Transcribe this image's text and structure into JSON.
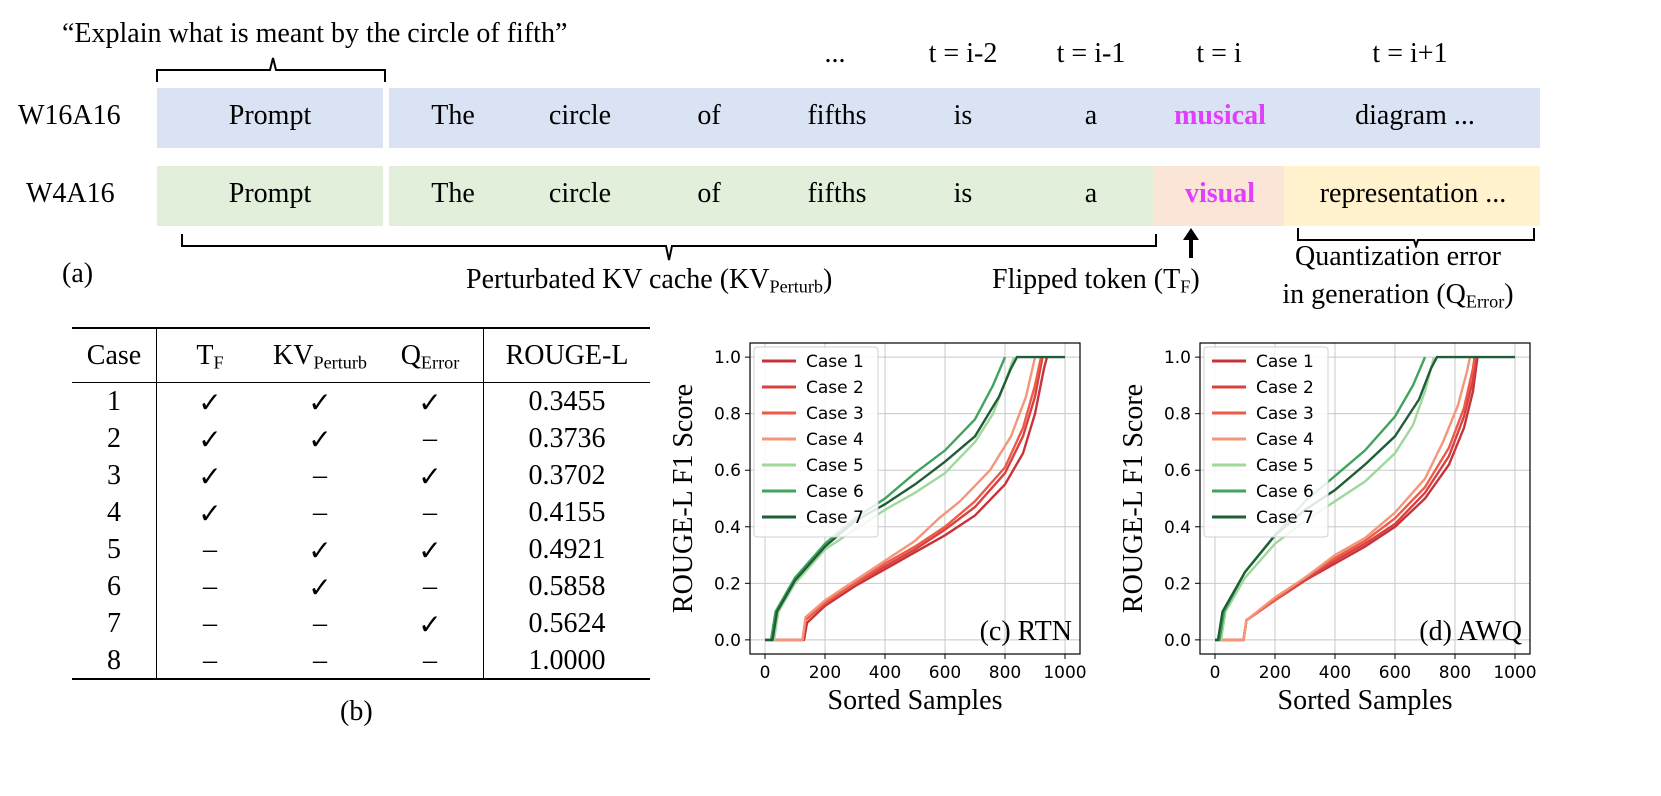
{
  "panel_a": {
    "quote": "“Explain what is meant by the circle of fifth”",
    "time_headers": [
      "...",
      "t = i-2",
      "t = i-1",
      "t = i",
      "t = i+1"
    ],
    "rows": [
      {
        "label": "W16A16",
        "prompt": "Prompt",
        "tokens": [
          "The",
          "circle",
          "of",
          "fifths",
          "is",
          "a",
          "musical",
          "diagram ..."
        ]
      },
      {
        "label": "W4A16",
        "prompt": "Prompt",
        "tokens": [
          "The",
          "circle",
          "of",
          "fifths",
          "is",
          "a",
          "visual",
          "representation ..."
        ]
      }
    ],
    "label": "(a)",
    "kv_label": "Perturbated KV cache (KV",
    "kv_sub": "Perturb",
    "kv_close": ")",
    "flip_label": "Flipped token (T",
    "flip_sub": "F",
    "flip_close": ")",
    "qerr_line1": "Quantization error",
    "qerr_line2": "in generation (Q",
    "qerr_sub": "Error",
    "qerr_close": ")",
    "colors": {
      "blue_band": "#dae3f3",
      "green_band": "#e2efda",
      "flip_band": "#fbe5d6",
      "qerr_band": "#fff2cc",
      "highlight": "#e040fb"
    }
  },
  "panel_b": {
    "label": "(b)",
    "headers": {
      "case": "Case",
      "tf": "T",
      "tf_sub": "F",
      "kv": "KV",
      "kv_sub": "Perturb",
      "q": "Q",
      "q_sub": "Error",
      "rouge": "ROUGE-L"
    },
    "rows": [
      {
        "case": "1",
        "tf": "✓",
        "kv": "✓",
        "q": "✓",
        "rouge": "0.3455"
      },
      {
        "case": "2",
        "tf": "✓",
        "kv": "✓",
        "q": "–",
        "rouge": "0.3736"
      },
      {
        "case": "3",
        "tf": "✓",
        "kv": "–",
        "q": "✓",
        "rouge": "0.3702"
      },
      {
        "case": "4",
        "tf": "✓",
        "kv": "–",
        "q": "–",
        "rouge": "0.4155"
      },
      {
        "case": "5",
        "tf": "–",
        "kv": "✓",
        "q": "✓",
        "rouge": "0.4921"
      },
      {
        "case": "6",
        "tf": "–",
        "kv": "✓",
        "q": "–",
        "rouge": "0.5858"
      },
      {
        "case": "7",
        "tf": "–",
        "kv": "–",
        "q": "✓",
        "rouge": "0.5624"
      },
      {
        "case": "8",
        "tf": "–",
        "kv": "–",
        "q": "–",
        "rouge": "1.0000"
      }
    ]
  },
  "chart_data": [
    {
      "type": "line",
      "title": "(c) RTN",
      "xlabel": "Sorted Samples",
      "ylabel": "ROUGE-L F1 Score",
      "xlim": [
        0,
        1000
      ],
      "ylim": [
        0,
        1.0
      ],
      "xticks": [
        0,
        200,
        400,
        600,
        800,
        1000
      ],
      "yticks": [
        0.0,
        0.2,
        0.4,
        0.6,
        0.8,
        1.0
      ],
      "grid": true,
      "legend": "top-left",
      "series": [
        {
          "name": "Case 1",
          "color": "#c8333a",
          "points": [
            [
              0,
              0
            ],
            [
              130,
              0
            ],
            [
              140,
              0.06
            ],
            [
              200,
              0.12
            ],
            [
              300,
              0.19
            ],
            [
              400,
              0.25
            ],
            [
              500,
              0.31
            ],
            [
              600,
              0.37
            ],
            [
              700,
              0.44
            ],
            [
              800,
              0.55
            ],
            [
              860,
              0.66
            ],
            [
              900,
              0.8
            ],
            [
              930,
              0.96
            ],
            [
              940,
              1.0
            ]
          ]
        },
        {
          "name": "Case 2",
          "color": "#d94040",
          "points": [
            [
              0,
              0
            ],
            [
              125,
              0
            ],
            [
              135,
              0.07
            ],
            [
              200,
              0.13
            ],
            [
              300,
              0.2
            ],
            [
              400,
              0.26
            ],
            [
              500,
              0.32
            ],
            [
              600,
              0.39
            ],
            [
              700,
              0.47
            ],
            [
              800,
              0.59
            ],
            [
              860,
              0.72
            ],
            [
              900,
              0.86
            ],
            [
              925,
              1.0
            ]
          ]
        },
        {
          "name": "Case 3",
          "color": "#ee5a48",
          "points": [
            [
              0,
              0
            ],
            [
              125,
              0
            ],
            [
              135,
              0.07
            ],
            [
              200,
              0.13
            ],
            [
              300,
              0.2
            ],
            [
              400,
              0.27
            ],
            [
              500,
              0.33
            ],
            [
              600,
              0.4
            ],
            [
              700,
              0.49
            ],
            [
              800,
              0.61
            ],
            [
              860,
              0.75
            ],
            [
              900,
              0.9
            ],
            [
              920,
              1.0
            ]
          ]
        },
        {
          "name": "Case 4",
          "color": "#f4967a",
          "points": [
            [
              0,
              0
            ],
            [
              125,
              0
            ],
            [
              135,
              0.08
            ],
            [
              200,
              0.14
            ],
            [
              300,
              0.21
            ],
            [
              400,
              0.28
            ],
            [
              500,
              0.35
            ],
            [
              580,
              0.43
            ],
            [
              650,
              0.49
            ],
            [
              750,
              0.6
            ],
            [
              820,
              0.72
            ],
            [
              870,
              0.86
            ],
            [
              900,
              1.0
            ]
          ]
        },
        {
          "name": "Case 5",
          "color": "#9fd89b",
          "points": [
            [
              0,
              0
            ],
            [
              30,
              0
            ],
            [
              45,
              0.1
            ],
            [
              100,
              0.2
            ],
            [
              200,
              0.32
            ],
            [
              300,
              0.39
            ],
            [
              400,
              0.46
            ],
            [
              500,
              0.52
            ],
            [
              600,
              0.59
            ],
            [
              700,
              0.7
            ],
            [
              760,
              0.8
            ],
            [
              800,
              0.91
            ],
            [
              830,
              1.0
            ]
          ]
        },
        {
          "name": "Case 6",
          "color": "#41a35d",
          "points": [
            [
              0,
              0
            ],
            [
              20,
              0
            ],
            [
              35,
              0.1
            ],
            [
              100,
              0.22
            ],
            [
              200,
              0.34
            ],
            [
              300,
              0.43
            ],
            [
              400,
              0.5
            ],
            [
              500,
              0.59
            ],
            [
              600,
              0.67
            ],
            [
              700,
              0.78
            ],
            [
              760,
              0.9
            ],
            [
              800,
              1.0
            ]
          ]
        },
        {
          "name": "Case 7",
          "color": "#1f5e37",
          "points": [
            [
              0,
              0
            ],
            [
              25,
              0
            ],
            [
              40,
              0.1
            ],
            [
              100,
              0.21
            ],
            [
              200,
              0.33
            ],
            [
              300,
              0.42
            ],
            [
              400,
              0.48
            ],
            [
              500,
              0.55
            ],
            [
              600,
              0.63
            ],
            [
              700,
              0.72
            ],
            [
              780,
              0.86
            ],
            [
              820,
              0.96
            ],
            [
              840,
              1.0
            ],
            [
              1000,
              1.0
            ]
          ]
        }
      ]
    },
    {
      "type": "line",
      "title": "(d) AWQ",
      "xlabel": "Sorted Samples",
      "ylabel": "ROUGE-L F1 Score",
      "xlim": [
        0,
        1000
      ],
      "ylim": [
        0,
        1.0
      ],
      "xticks": [
        0,
        200,
        400,
        600,
        800,
        1000
      ],
      "yticks": [
        0.0,
        0.2,
        0.4,
        0.6,
        0.8,
        1.0
      ],
      "grid": true,
      "legend": "top-left",
      "series": [
        {
          "name": "Case 1",
          "color": "#c8333a",
          "points": [
            [
              0,
              0
            ],
            [
              95,
              0
            ],
            [
              105,
              0.07
            ],
            [
              200,
              0.14
            ],
            [
              300,
              0.21
            ],
            [
              400,
              0.27
            ],
            [
              500,
              0.33
            ],
            [
              600,
              0.4
            ],
            [
              700,
              0.5
            ],
            [
              780,
              0.62
            ],
            [
              830,
              0.75
            ],
            [
              860,
              0.88
            ],
            [
              875,
              1.0
            ]
          ]
        },
        {
          "name": "Case 2",
          "color": "#d94040",
          "points": [
            [
              0,
              0
            ],
            [
              95,
              0
            ],
            [
              105,
              0.07
            ],
            [
              200,
              0.14
            ],
            [
              300,
              0.21
            ],
            [
              400,
              0.28
            ],
            [
              500,
              0.34
            ],
            [
              600,
              0.41
            ],
            [
              700,
              0.52
            ],
            [
              780,
              0.65
            ],
            [
              830,
              0.79
            ],
            [
              860,
              0.92
            ],
            [
              870,
              1.0
            ]
          ]
        },
        {
          "name": "Case 3",
          "color": "#ee5a48",
          "points": [
            [
              0,
              0
            ],
            [
              95,
              0
            ],
            [
              105,
              0.07
            ],
            [
              200,
              0.14
            ],
            [
              300,
              0.22
            ],
            [
              400,
              0.29
            ],
            [
              500,
              0.35
            ],
            [
              600,
              0.43
            ],
            [
              700,
              0.54
            ],
            [
              780,
              0.68
            ],
            [
              830,
              0.82
            ],
            [
              860,
              0.96
            ],
            [
              865,
              1.0
            ]
          ]
        },
        {
          "name": "Case 4",
          "color": "#f4967a",
          "points": [
            [
              0,
              0
            ],
            [
              95,
              0
            ],
            [
              105,
              0.07
            ],
            [
              200,
              0.15
            ],
            [
              300,
              0.22
            ],
            [
              400,
              0.3
            ],
            [
              500,
              0.36
            ],
            [
              600,
              0.45
            ],
            [
              700,
              0.57
            ],
            [
              760,
              0.7
            ],
            [
              810,
              0.83
            ],
            [
              840,
              0.95
            ],
            [
              850,
              1.0
            ]
          ]
        },
        {
          "name": "Case 5",
          "color": "#9fd89b",
          "points": [
            [
              0,
              0
            ],
            [
              20,
              0
            ],
            [
              35,
              0.1
            ],
            [
              100,
              0.22
            ],
            [
              200,
              0.34
            ],
            [
              300,
              0.42
            ],
            [
              400,
              0.49
            ],
            [
              500,
              0.56
            ],
            [
              600,
              0.66
            ],
            [
              660,
              0.76
            ],
            [
              700,
              0.88
            ],
            [
              730,
              1.0
            ]
          ]
        },
        {
          "name": "Case 6",
          "color": "#41a35d",
          "points": [
            [
              0,
              0
            ],
            [
              15,
              0
            ],
            [
              30,
              0.1
            ],
            [
              100,
              0.24
            ],
            [
              200,
              0.37
            ],
            [
              300,
              0.49
            ],
            [
              400,
              0.58
            ],
            [
              500,
              0.67
            ],
            [
              600,
              0.79
            ],
            [
              660,
              0.9
            ],
            [
              700,
              1.0
            ]
          ]
        },
        {
          "name": "Case 7",
          "color": "#1f5e37",
          "points": [
            [
              0,
              0
            ],
            [
              10,
              0
            ],
            [
              25,
              0.1
            ],
            [
              100,
              0.24
            ],
            [
              200,
              0.37
            ],
            [
              300,
              0.46
            ],
            [
              400,
              0.53
            ],
            [
              500,
              0.62
            ],
            [
              600,
              0.72
            ],
            [
              680,
              0.85
            ],
            [
              720,
              0.96
            ],
            [
              740,
              1.0
            ],
            [
              1000,
              1.0
            ]
          ]
        }
      ]
    }
  ]
}
